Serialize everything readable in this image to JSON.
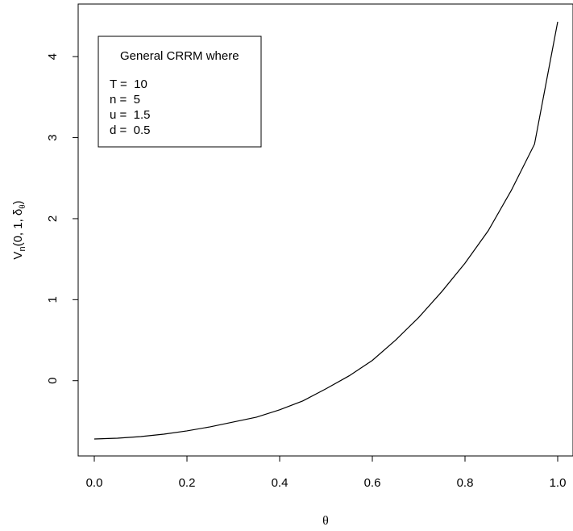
{
  "chart_data": {
    "type": "line",
    "xlabel": "θ",
    "ylabel": {
      "base": "V",
      "sub1": "n",
      "mid": "(0, 1, δ",
      "sub2": "θ",
      "end": ")"
    },
    "xlim": [
      0.0,
      1.0
    ],
    "ylim": [
      -0.72,
      4.45
    ],
    "xticks": [
      {
        "value": 0.0,
        "label": "0.0"
      },
      {
        "value": 0.2,
        "label": "0.2"
      },
      {
        "value": 0.4,
        "label": "0.4"
      },
      {
        "value": 0.6,
        "label": "0.6"
      },
      {
        "value": 0.8,
        "label": "0.8"
      },
      {
        "value": 1.0,
        "label": "1.0"
      }
    ],
    "yticks": [
      {
        "value": 0,
        "label": "0"
      },
      {
        "value": 1,
        "label": "1"
      },
      {
        "value": 2,
        "label": "2"
      },
      {
        "value": 3,
        "label": "3"
      },
      {
        "value": 4,
        "label": "4"
      }
    ],
    "grid": false,
    "line_color": "#000000",
    "series": [
      {
        "x": [
          0.0,
          0.05,
          0.1,
          0.15,
          0.2,
          0.25,
          0.3,
          0.35,
          0.4,
          0.45,
          0.5,
          0.55,
          0.6,
          0.65,
          0.7,
          0.75,
          0.8,
          0.85,
          0.9,
          0.95,
          1.0
        ],
        "y": [
          -0.72,
          -0.71,
          -0.69,
          -0.66,
          -0.62,
          -0.57,
          -0.51,
          -0.45,
          -0.36,
          -0.25,
          -0.1,
          0.06,
          0.25,
          0.5,
          0.78,
          1.1,
          1.45,
          1.85,
          2.35,
          2.92,
          4.43
        ]
      }
    ],
    "legend": {
      "position": "top-left",
      "title": "General CRRM where",
      "entries": [
        "T =  10",
        "n =  5",
        "u =  1.5",
        "d =  0.5"
      ]
    }
  }
}
